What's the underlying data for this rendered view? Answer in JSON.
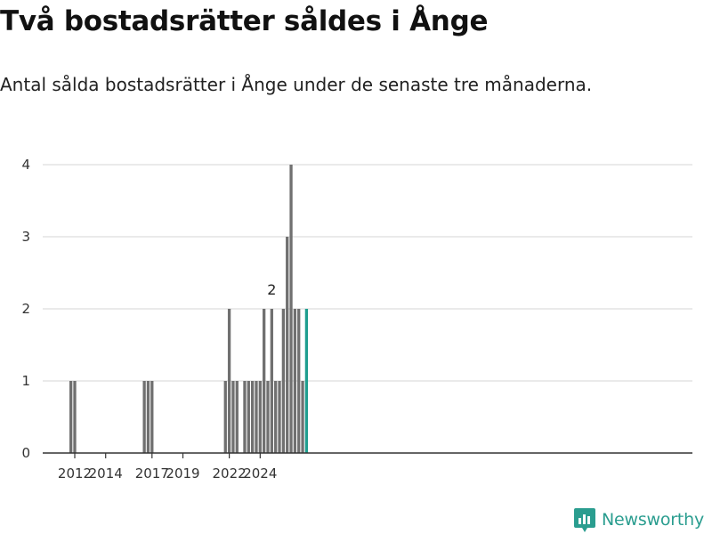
{
  "title": "Två bostadsrätter såldes i Ånge",
  "subtitle": "Antal sålda bostadsrätter i Ånge under de senaste tre månaderna.",
  "brand": {
    "name": "Newsworthy",
    "icon": "newsworthy-logo-icon",
    "color": "#2a9d8f"
  },
  "colors": {
    "bar": "#707070",
    "highlight": "#1f9e8f",
    "grid": "#dddddd",
    "axis": "#333333"
  },
  "chart_data": {
    "type": "bar",
    "x_type": "date-quarterly",
    "title": "Två bostadsrätter såldes i Ånge",
    "xlabel": "",
    "ylabel": "",
    "ylim": [
      0,
      4
    ],
    "y_ticks": [
      0,
      1,
      2,
      3,
      4
    ],
    "x_ticks": [
      "2012",
      "2014",
      "2017",
      "2019",
      "2022",
      "2024"
    ],
    "grid": true,
    "highlight_last": true,
    "annotation": {
      "x": "2024-Q4",
      "label": "2"
    },
    "categories": [
      "2011-Q4",
      "2012-Q1",
      "2016-Q3",
      "2016-Q4",
      "2017-Q1",
      "2021-Q4",
      "2022-Q1",
      "2022-Q2",
      "2022-Q3",
      "2023-Q1",
      "2023-Q2",
      "2023-Q3",
      "2023-Q4",
      "2024-Q1",
      "2024-Q2",
      "2024-Q3",
      "2024-Q4",
      "2025-Q1",
      "2025-Q2",
      "2025-Q3",
      "2025-Q4",
      "2026-Q1",
      "2026-Q2",
      "2026-Q3",
      "2026-Q4",
      "2027-Q1"
    ],
    "values": [
      1,
      1,
      1,
      1,
      1,
      1,
      2,
      1,
      1,
      1,
      1,
      1,
      1,
      1,
      2,
      1,
      2,
      1,
      1,
      2,
      3,
      4,
      2,
      2,
      1,
      2
    ]
  }
}
